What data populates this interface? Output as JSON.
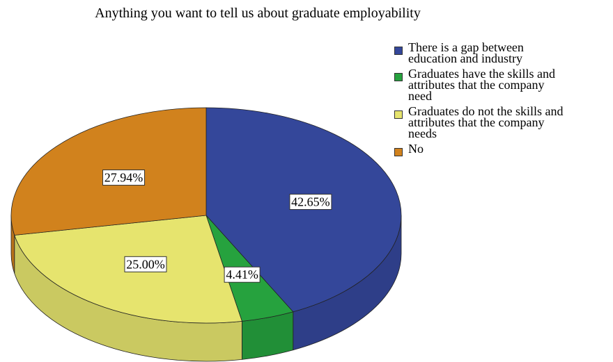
{
  "chart_data": {
    "type": "pie",
    "title": "Anything you want to tell us about graduate employability",
    "legend_position": "right",
    "slices": [
      {
        "name": "There is a gap between education and industry",
        "legend_lines": [
          "There is a gap between",
          "education and industry"
        ],
        "value": 42.65,
        "label": "42.65%",
        "color": "#34479a"
      },
      {
        "name": "Graduates have the skills and attributes that the company need",
        "legend_lines": [
          "Graduates have the skills and",
          "attributes that the company",
          "need"
        ],
        "value": 4.41,
        "label": "4.41%",
        "color": "#26a23e"
      },
      {
        "name": "Graduates do not the skills and attributes that the company needs",
        "legend_lines": [
          "Graduates do not the skills and",
          "attributes that the company",
          "needs"
        ],
        "value": 25.0,
        "label": "25.00%",
        "color": "#e6e46e"
      },
      {
        "name": "No",
        "legend_lines": [
          "No"
        ],
        "value": 27.94,
        "label": "27.94%",
        "color": "#d1821d"
      }
    ]
  }
}
